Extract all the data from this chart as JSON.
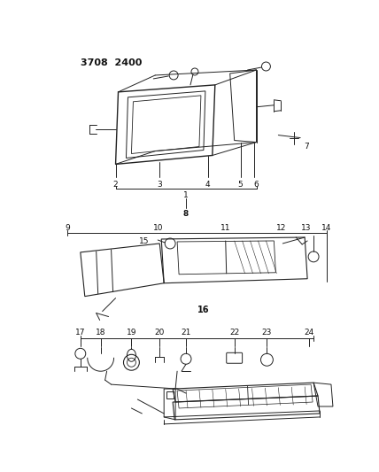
{
  "bg_color": "#ffffff",
  "line_color": "#222222",
  "text_color": "#111111",
  "header_text": "3708  2400",
  "fig_width": 4.28,
  "fig_height": 5.33,
  "dpi": 100
}
